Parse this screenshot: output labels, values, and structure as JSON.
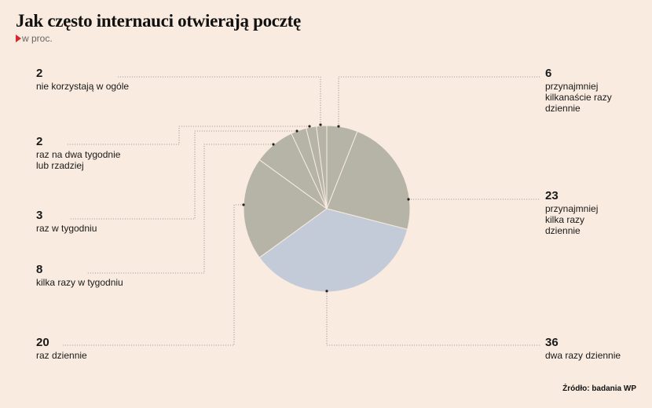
{
  "header": {
    "title": "Jak często internauci otwierają pocztę",
    "subtitle": "w proc."
  },
  "footer": {
    "source": "Źródło: badania WP"
  },
  "colors": {
    "background": "#f9ebdf",
    "slice_gray": "#b6b4a6",
    "slice_blue": "#c3cad8",
    "accent": "#d9262b"
  },
  "chart_data": {
    "type": "pie",
    "title": "Jak często internauci otwierają pocztę",
    "subtitle": "w proc.",
    "slices": [
      {
        "label": "przynajmniej kilkanaście razy dziennie",
        "value": 6
      },
      {
        "label": "przynajmniej kilka razy dziennie",
        "value": 23
      },
      {
        "label": "dwa razy dziennie",
        "value": 36
      },
      {
        "label": "raz dziennie",
        "value": 20
      },
      {
        "label": "kilka razy w tygodniu",
        "value": 8
      },
      {
        "label": "raz w tygodniu",
        "value": 3
      },
      {
        "label": "raz na dwa tygodnie lub rzadziej",
        "value": 2
      },
      {
        "label": "nie korzystają w ogóle",
        "value": 2
      }
    ]
  },
  "labels": [
    {
      "value": "2",
      "text": "nie korzystają w ogóle"
    },
    {
      "value": "2",
      "text": "raz na dwa tygodnie\nlub rzadziej"
    },
    {
      "value": "3",
      "text": "raz w tygodniu"
    },
    {
      "value": "8",
      "text": "kilka razy w tygodniu"
    },
    {
      "value": "20",
      "text": "raz dziennie"
    },
    {
      "value": "6",
      "text": "przynajmniej\nkilkanaście razy\ndziennie"
    },
    {
      "value": "23",
      "text": "przynajmniej\nkilka razy\ndziennie"
    },
    {
      "value": "36",
      "text": "dwa razy dziennie"
    }
  ]
}
